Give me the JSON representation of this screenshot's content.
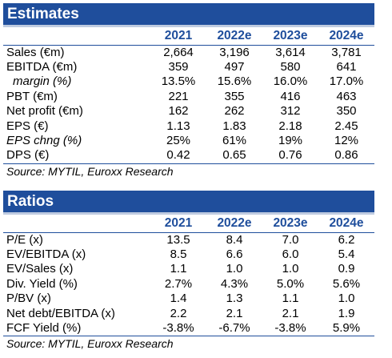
{
  "estimates": {
    "title": "Estimates",
    "columns": [
      "2021",
      "2022e",
      "2023e",
      "2024e"
    ],
    "rows": [
      {
        "label": "Sales (€m)",
        "values": [
          "2,664",
          "3,196",
          "3,614",
          "3,781"
        ]
      },
      {
        "label": "EBITDA (€m)",
        "values": [
          "359",
          "497",
          "580",
          "641"
        ]
      },
      {
        "label": "margin (%)",
        "values": [
          "13.5%",
          "15.6%",
          "16.0%",
          "17.0%"
        ]
      },
      {
        "label": "PBT (€m)",
        "values": [
          "221",
          "355",
          "416",
          "463"
        ]
      },
      {
        "label": "Net profit (€m)",
        "values": [
          "162",
          "262",
          "312",
          "350"
        ]
      },
      {
        "label": "EPS (€)",
        "values": [
          "1.13",
          "1.83",
          "2.18",
          "2.45"
        ]
      },
      {
        "label": "EPS chng (%)",
        "values": [
          "25%",
          "61%",
          "19%",
          "12%"
        ]
      },
      {
        "label": "DPS (€)",
        "values": [
          "0.42",
          "0.65",
          "0.76",
          "0.86"
        ]
      }
    ],
    "source": "Source: MYTIL, Euroxx Research"
  },
  "ratios": {
    "title": "Ratios",
    "columns": [
      "2021",
      "2022e",
      "2023e",
      "2024e"
    ],
    "rows": [
      {
        "label": "P/E (x)",
        "values": [
          "13.5",
          "8.4",
          "7.0",
          "6.2"
        ]
      },
      {
        "label": "EV/EBITDA (x)",
        "values": [
          "8.5",
          "6.6",
          "6.0",
          "5.4"
        ]
      },
      {
        "label": "EV/Sales (x)",
        "values": [
          "1.1",
          "1.0",
          "1.0",
          "0.9"
        ]
      },
      {
        "label": "Div. Yield (%)",
        "values": [
          "2.7%",
          "4.3%",
          "5.0%",
          "5.6%"
        ]
      },
      {
        "label": "P/BV (x)",
        "values": [
          "1.4",
          "1.3",
          "1.1",
          "1.0"
        ]
      },
      {
        "label": "Net debt/EBITDA (x)",
        "values": [
          "2.2",
          "2.1",
          "2.1",
          "1.9"
        ]
      },
      {
        "label": "FCF Yield (%)",
        "values": [
          "-3.8%",
          "-6.7%",
          "-3.8%",
          "5.9%"
        ]
      }
    ],
    "source": "Source: MYTIL, Euroxx Research"
  }
}
